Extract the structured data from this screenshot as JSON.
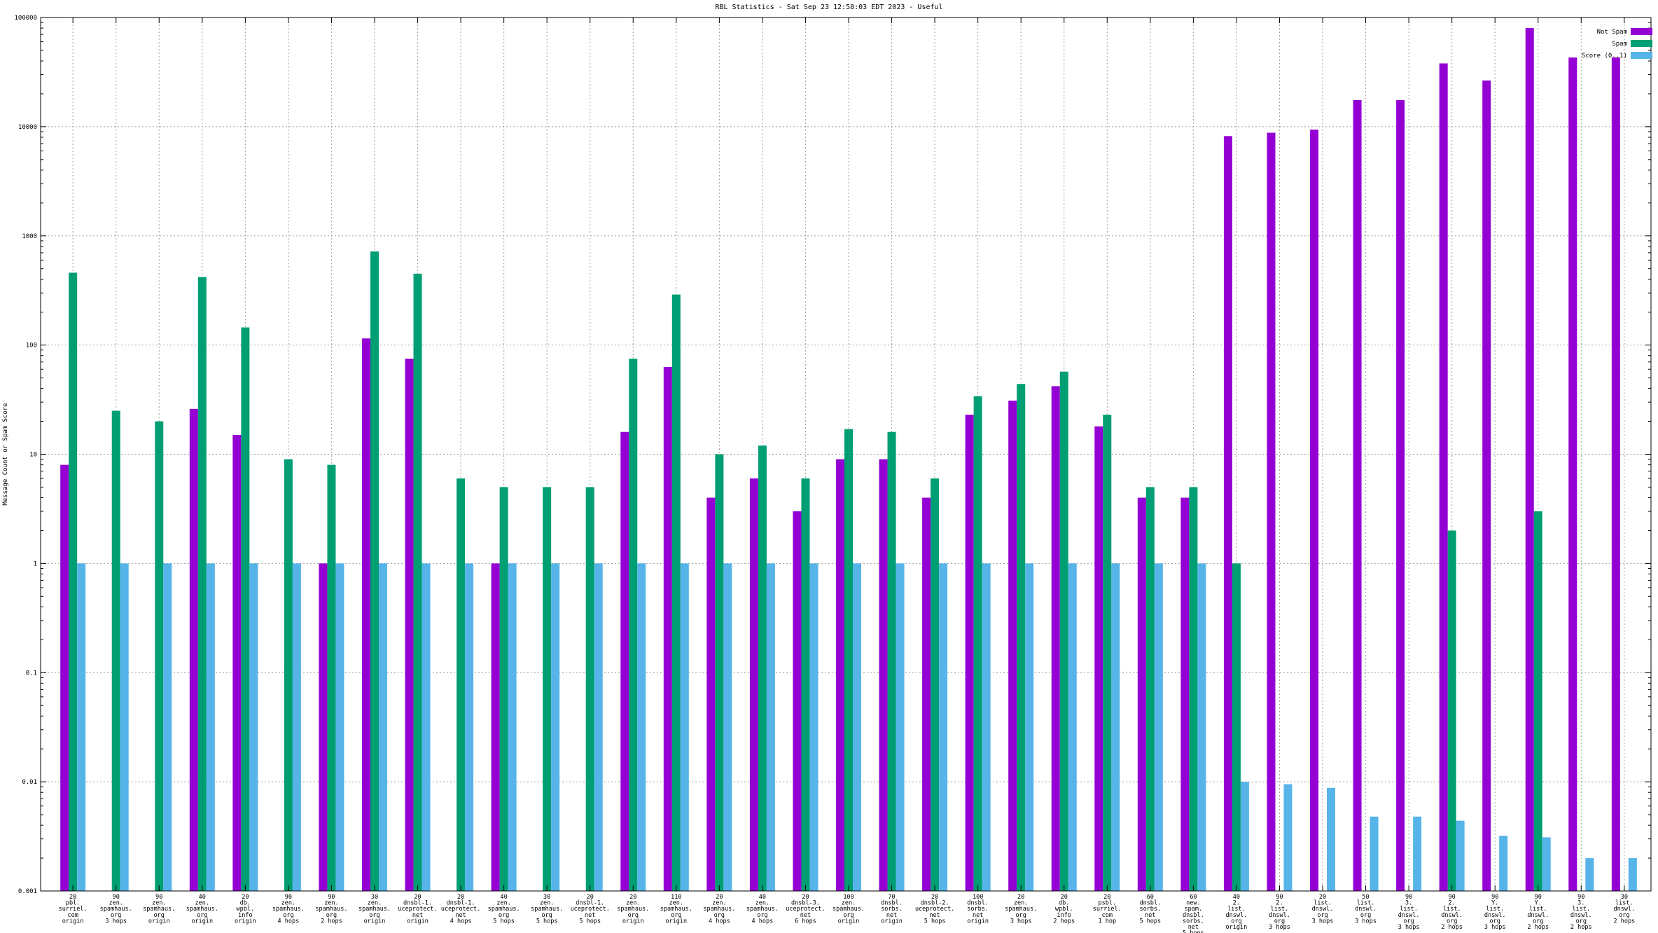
{
  "chart_data": {
    "type": "bar",
    "title": "RBL Statistics - Sat Sep 23 12:58:03 EDT 2023 - Useful",
    "ylabel": "Message Count or Spam Score",
    "xlabel": "",
    "yscale": "log",
    "ylim": [
      0.001,
      100000
    ],
    "yticks": [
      "0.001",
      "0.01",
      "0.1",
      "1",
      "10",
      "100",
      "1000",
      "10000",
      "100000"
    ],
    "grid": true,
    "legend_position": "top-right",
    "categories": [
      "20\npbl.\nsurriel.\ncom\norigin",
      "90\nzen.\nspamhaus.\norg\n3 hops",
      "90\nzen.\nspamhaus.\norg\norigin",
      "40\nzen.\nspamhaus.\norg\norigin",
      "20\ndb.\nwpbl.\ninfo\norigin",
      "90\nzen.\nspamhaus.\norg\n4 hops",
      "90\nzen.\nspamhaus.\norg\n2 hops",
      "30\nzen.\nspamhaus.\norg\norigin",
      "20\ndnsbl-1.\nuceprotect.\nnet\norigin",
      "20\ndnsbl-1.\nuceprotect.\nnet\n4 hops",
      "40\nzen.\nspamhaus.\norg\n5 hops",
      "30\nzen.\nspamhaus.\norg\n5 hops",
      "20\ndnsbl-1.\nuceprotect.\nnet\n5 hops",
      "20\nzen.\nspamhaus.\norg\norigin",
      "110\nzen.\nspamhaus.\norg\norigin",
      "20\nzen.\nspamhaus.\norg\n4 hops",
      "40\nzen.\nspamhaus.\norg\n4 hops",
      "20\ndnsbl-3.\nuceprotect.\nnet\n6 hops",
      "100\nzen.\nspamhaus.\norg\norigin",
      "70\ndnsbl.\nsorbs.\nnet\norigin",
      "20\ndnsbl-2.\nuceprotect.\nnet\n5 hops",
      "100\ndnsbl.\nsorbs.\nnet\norigin",
      "20\nzen.\nspamhaus.\norg\n3 hops",
      "20\ndb.\nwpbl.\ninfo\n2 hops",
      "20\npsbl.\nsurriel.\ncom\n1 hop",
      "60\ndnsbl.\nsorbs.\nnet\n5 hops",
      "60\nnew.\nspam.\ndnsbl.\nsorbs.\nnet\n5 hops",
      "40\n2.\nlist.\ndnswl.\norg\norigin",
      "90\n2.\nlist.\ndnswl.\norg\n3 hops",
      "20\nlist.\ndnswl.\norg\n3 hops",
      "50\nlist.\ndnswl.\norg\n3 hops",
      "90\n3.\nlist.\ndnswl.\norg\n3 hops",
      "90\n2.\nlist.\ndnswl.\norg\n2 hops",
      "90\nY.\nlist.\ndnswl.\norg\n3 hops",
      "90\nY.\nlist.\ndnswl.\norg\n2 hops",
      "90\n3.\nlist.\ndnswl.\norg\n2 hops",
      "30\nlist.\ndnswl.\norg\n2 hops"
    ],
    "series": [
      {
        "name": "Not Spam",
        "color": "#9400d3",
        "values": [
          8,
          null,
          null,
          26,
          15,
          null,
          1,
          115,
          75,
          null,
          1,
          null,
          null,
          16,
          63,
          4,
          6,
          3,
          9,
          9,
          4,
          23,
          31,
          42,
          18,
          4,
          4,
          8200,
          8800,
          9400,
          17500,
          17500,
          38000,
          26500,
          80000,
          43000,
          43000
        ]
      },
      {
        "name": "Spam",
        "color": "#009e73",
        "values": [
          460,
          25,
          20,
          420,
          145,
          9,
          8,
          720,
          450,
          6,
          5,
          5,
          5,
          75,
          290,
          10,
          12,
          6,
          17,
          16,
          6,
          34,
          44,
          57,
          23,
          5,
          5,
          1,
          null,
          null,
          null,
          null,
          2,
          null,
          3,
          null,
          null
        ]
      },
      {
        "name": "Score (0..1)",
        "color": "#56b4e9",
        "values": [
          1,
          1,
          1,
          1,
          1,
          1,
          1,
          1,
          1,
          1,
          1,
          1,
          1,
          1,
          1,
          1,
          1,
          1,
          1,
          1,
          1,
          1,
          1,
          1,
          1,
          1,
          1,
          0.01,
          0.0095,
          0.0088,
          0.0048,
          0.0048,
          0.0044,
          0.0032,
          0.0031,
          0.002,
          0.002
        ]
      }
    ]
  }
}
